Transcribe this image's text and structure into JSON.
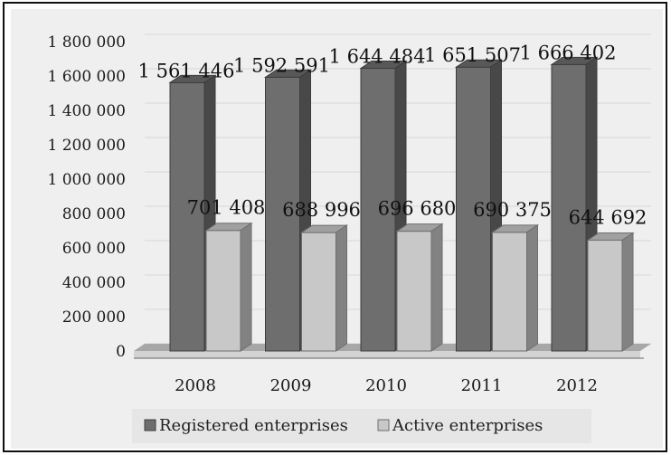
{
  "chart_data": {
    "type": "bar",
    "categories": [
      "2008",
      "2009",
      "2010",
      "2011",
      "2012"
    ],
    "series": [
      {
        "name": "Registered enterprises",
        "values": [
          1561446,
          1592591,
          1644484,
          1651507,
          1666402
        ],
        "color": "#6e6e6e"
      },
      {
        "name": "Active enterprises",
        "values": [
          701408,
          688996,
          696680,
          690375,
          644692
        ],
        "color": "#c8c8c8"
      }
    ],
    "data_labels": [
      [
        "1 561 446",
        "1 592 591",
        "1 644 484",
        "1 651 507",
        "1 666 402"
      ],
      [
        "701 408",
        "688 996",
        "696 680",
        "690 375",
        "644 692"
      ]
    ],
    "yticks": [
      "0",
      "200 000",
      "400 000",
      "600 000",
      "800 000",
      "1 000 000",
      "1 200 000",
      "1 400 000",
      "1 600 000",
      "1 800 000"
    ],
    "ylim": [
      0,
      1800000
    ],
    "grid": true,
    "legend_position": "bottom",
    "style": "3d-bar"
  }
}
